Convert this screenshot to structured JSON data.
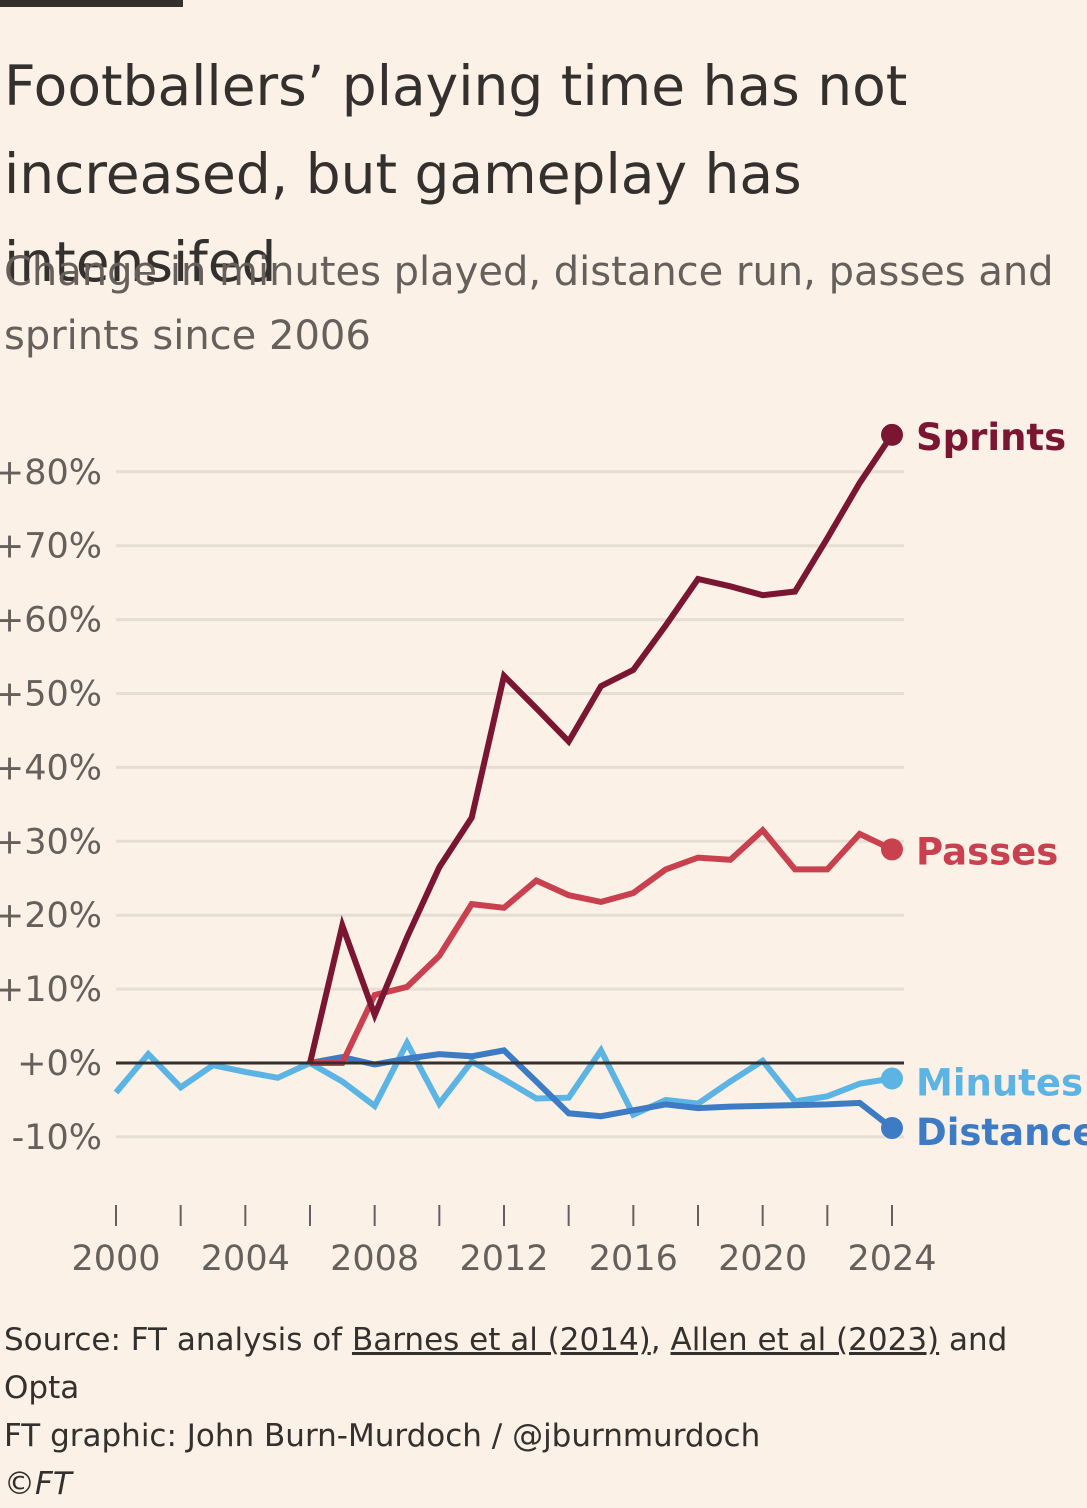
{
  "header": {
    "title": "Footballers’ playing time has not increased, but gameplay has intensifed",
    "subtitle": "Change in minutes played, distance run, passes and sprints since 2006"
  },
  "footer": {
    "source_prefix": "Source: FT analysis of ",
    "source_link1": "Barnes et al (2014)",
    "source_sep": ", ",
    "source_link2": "Allen et al (2023)",
    "source_suffix": " and Opta",
    "credit": "FT graphic: John Burn-Murdoch / @jburnmurdoch",
    "copyright": "©FT"
  },
  "colors": {
    "background": "#fbf1e6",
    "gridline": "#e6ddd4",
    "zero_line": "#33302e",
    "sprints": "#7a1532",
    "passes": "#c9404f",
    "minutes": "#5cb4e4",
    "distance": "#3d7bc4"
  },
  "chart_data": {
    "type": "line",
    "title": "Footballers’ playing time has not increased, but gameplay has intensifed",
    "subtitle": "Change in minutes played, distance run, passes and sprints since 2006",
    "xlabel": "",
    "ylabel": "",
    "xlim": [
      2000,
      2024
    ],
    "ylim": [
      -10,
      85
    ],
    "x_ticks": [
      2000,
      2002,
      2004,
      2006,
      2008,
      2010,
      2012,
      2014,
      2016,
      2018,
      2020,
      2022,
      2024
    ],
    "x_tick_labels": [
      "2000",
      "2004",
      "2008",
      "2012",
      "2016",
      "2020",
      "2024"
    ],
    "x_tick_label_years": [
      2000,
      2004,
      2008,
      2012,
      2016,
      2020,
      2024
    ],
    "y_ticks": [
      -10,
      0,
      10,
      20,
      30,
      40,
      50,
      60,
      70,
      80
    ],
    "y_tick_labels": [
      "-10%",
      "+0%",
      "+10%",
      "+20%",
      "+30%",
      "+40%",
      "+50%",
      "+60%",
      "+70%",
      "+80%"
    ],
    "grid": true,
    "legend": "direct labels at line ends",
    "series": [
      {
        "name": "Minutes",
        "color": "#5cb4e4",
        "x": [
          2000,
          2001,
          2002,
          2003,
          2004,
          2005,
          2006,
          2007,
          2008,
          2009,
          2010,
          2011,
          2012,
          2013,
          2014,
          2015,
          2016,
          2017,
          2018,
          2019,
          2020,
          2021,
          2022,
          2023,
          2024
        ],
        "values": [
          -4,
          1.2,
          -3.3,
          -0.3,
          -1.2,
          -2,
          0,
          -2.5,
          -5.8,
          2.7,
          -5.5,
          0.2,
          -2.2,
          -4.8,
          -4.7,
          1.7,
          -7,
          -5,
          -5.5,
          -2.5,
          0.3,
          -5.2,
          -4.5,
          -2.8,
          -2.1
        ]
      },
      {
        "name": "Distance",
        "color": "#3d7bc4",
        "x": [
          2006,
          2007,
          2008,
          2009,
          2010,
          2011,
          2012,
          2013,
          2014,
          2015,
          2016,
          2017,
          2018,
          2019,
          2020,
          2021,
          2022,
          2023,
          2024
        ],
        "values": [
          0,
          0.8,
          -0.2,
          0.6,
          1.2,
          0.9,
          1.7,
          -2.5,
          -6.8,
          -7.2,
          -6.4,
          -5.6,
          -6.1,
          -5.9,
          -5.8,
          -5.7,
          -5.6,
          -5.4,
          -8.8
        ]
      },
      {
        "name": "Passes",
        "color": "#c9404f",
        "x": [
          2006,
          2007,
          2008,
          2009,
          2010,
          2011,
          2012,
          2013,
          2014,
          2015,
          2016,
          2017,
          2018,
          2019,
          2020,
          2021,
          2022,
          2023,
          2024
        ],
        "values": [
          0,
          0,
          9.2,
          10.3,
          14.5,
          21.5,
          21,
          24.7,
          22.7,
          21.8,
          23,
          26.2,
          27.8,
          27.5,
          31.5,
          26.2,
          26.2,
          31,
          28.9
        ]
      },
      {
        "name": "Sprints",
        "color": "#7a1532",
        "x": [
          2006,
          2007,
          2008,
          2009,
          2010,
          2011,
          2012,
          2013,
          2014,
          2015,
          2016,
          2017,
          2018,
          2019,
          2020,
          2021,
          2022,
          2023,
          2024
        ],
        "values": [
          0,
          18.6,
          6.5,
          17,
          26.5,
          33.2,
          52.4,
          48,
          43.5,
          51,
          53.2,
          59.2,
          65.5,
          64.5,
          63.3,
          63.8,
          71,
          78.5,
          85
        ]
      }
    ]
  }
}
